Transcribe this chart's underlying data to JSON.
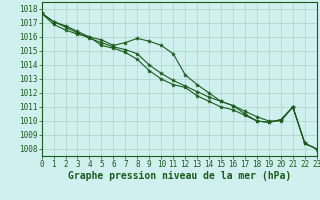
{
  "title": "Graphe pression niveau de la mer (hPa)",
  "background_color": "#cff0ee",
  "grid_color": "#b0d8d0",
  "line_color": "#1a5c1a",
  "x_values": [
    0,
    1,
    2,
    3,
    4,
    5,
    6,
    7,
    8,
    9,
    10,
    11,
    12,
    13,
    14,
    15,
    16,
    17,
    18,
    19,
    20,
    21,
    22,
    23
  ],
  "line1": [
    1017.7,
    1017.1,
    1016.8,
    1016.4,
    1016.0,
    1015.8,
    1015.4,
    1015.6,
    1015.9,
    1015.7,
    1015.4,
    1014.8,
    1013.3,
    1012.6,
    1012.0,
    1011.4,
    1011.1,
    1010.5,
    1010.0,
    1009.9,
    1010.1,
    1011.0,
    1008.4,
    1008.0
  ],
  "line2": [
    1017.7,
    1017.1,
    1016.7,
    1016.3,
    1015.9,
    1015.6,
    1015.3,
    1015.1,
    1014.8,
    1014.0,
    1013.4,
    1012.9,
    1012.5,
    1012.1,
    1011.7,
    1011.4,
    1011.1,
    1010.7,
    1010.3,
    1010.0,
    1010.0,
    1011.0,
    1008.4,
    1008.0
  ],
  "line3": [
    1017.7,
    1016.9,
    1016.5,
    1016.2,
    1016.0,
    1015.4,
    1015.2,
    1014.9,
    1014.4,
    1013.6,
    1013.0,
    1012.6,
    1012.4,
    1011.8,
    1011.4,
    1011.0,
    1010.8,
    1010.4,
    1010.0,
    1009.9,
    1010.1,
    1011.0,
    1008.4,
    1008.0
  ],
  "ylim": [
    1007.5,
    1018.5
  ],
  "yticks": [
    1008,
    1009,
    1010,
    1011,
    1012,
    1013,
    1014,
    1015,
    1016,
    1017,
    1018
  ],
  "xlim": [
    0,
    23
  ],
  "xticks": [
    0,
    1,
    2,
    3,
    4,
    5,
    6,
    7,
    8,
    9,
    10,
    11,
    12,
    13,
    14,
    15,
    16,
    17,
    18,
    19,
    20,
    21,
    22,
    23
  ],
  "title_fontsize": 7,
  "tick_fontsize": 5.5,
  "fig_width": 3.2,
  "fig_height": 2.0,
  "dpi": 100
}
